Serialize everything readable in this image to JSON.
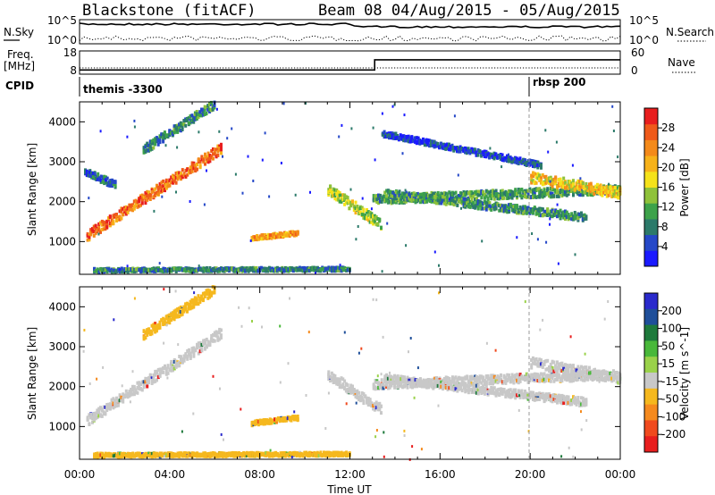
{
  "header": {
    "radar": "Blackstone (fitACF)",
    "beam_date": "Beam 08 04/Aug/2015 - 05/Aug/2015"
  },
  "sky_panel": {
    "left_label": "N.Sky",
    "right_label": "N.Search",
    "left_ticks": [
      "10^5",
      "10^0"
    ],
    "right_ticks": [
      "10^5",
      "10^0"
    ]
  },
  "freq_panel": {
    "left_label_1": "Freq.",
    "left_label_2": "[MHz]",
    "right_label": "Nave",
    "left_ticks": [
      "18",
      "8"
    ],
    "right_ticks": [
      "60",
      "0"
    ],
    "freq_steps": [
      {
        "t": 0,
        "v": 0.18
      },
      {
        "t": 13.1,
        "v": 0.18
      },
      {
        "t": 13.1,
        "v": 0.62
      },
      {
        "t": 24,
        "v": 0.62
      }
    ]
  },
  "cpid_panel": {
    "label": "CPID",
    "programs": [
      {
        "name": "themis -3300",
        "start_hour": 0
      },
      {
        "name": "rbsp 200",
        "start_hour": 20.0
      }
    ]
  },
  "chart_data": [
    {
      "type": "heatmap",
      "title": "",
      "xlabel": "Time UT",
      "ylabel": "Slant Range [km]",
      "xticks": [
        "00:00",
        "04:00",
        "08:00",
        "12:00",
        "16:00",
        "20:00",
        "00:00"
      ],
      "yticks": [
        "1000",
        "2000",
        "3000",
        "4000"
      ],
      "x_range_hours": [
        0,
        24
      ],
      "y_range_km": [
        180,
        4500
      ],
      "colorbar": {
        "label": "Power [dB]",
        "ticks": [
          "4",
          "8",
          "12",
          "16",
          "20",
          "24",
          "28"
        ],
        "range": [
          0,
          30
        ],
        "colors": [
          "#1a1aff",
          "#2548c8",
          "#2c7a6a",
          "#3da24a",
          "#8fc23a",
          "#f5e21a",
          "#f7b21a",
          "#f48a1a",
          "#ef5a1a",
          "#e81e1e"
        ]
      },
      "bands": [
        {
          "t0": 0.3,
          "t1": 6.3,
          "r0": 1150,
          "r1": 3350,
          "w": 260,
          "v": 24
        },
        {
          "t0": 2.8,
          "t1": 6.0,
          "r0": 3300,
          "r1": 4450,
          "w": 220,
          "v": 8
        },
        {
          "t0": 0.2,
          "t1": 1.6,
          "r0": 2750,
          "r1": 2400,
          "w": 180,
          "v": 6
        },
        {
          "t0": 7.6,
          "t1": 9.7,
          "r0": 1080,
          "r1": 1220,
          "w": 110,
          "v": 20
        },
        {
          "t0": 0.6,
          "t1": 12.0,
          "r0": 280,
          "r1": 310,
          "w": 90,
          "v": 8
        },
        {
          "t0": 11.0,
          "t1": 13.4,
          "r0": 2300,
          "r1": 1400,
          "w": 260,
          "v": 14
        },
        {
          "t0": 13.0,
          "t1": 24.0,
          "r0": 2050,
          "r1": 2300,
          "w": 220,
          "v": 10
        },
        {
          "t0": 13.5,
          "t1": 22.5,
          "r0": 2200,
          "r1": 1600,
          "w": 200,
          "v": 9
        },
        {
          "t0": 20.0,
          "t1": 24.0,
          "r0": 2600,
          "r1": 2200,
          "w": 260,
          "v": 18
        },
        {
          "t0": 13.4,
          "t1": 20.5,
          "r0": 3700,
          "r1": 2900,
          "w": 140,
          "v": 4
        }
      ]
    },
    {
      "type": "heatmap",
      "title": "",
      "xlabel": "Time UT",
      "ylabel": "Slant Range [km]",
      "xticks": [
        "00:00",
        "04:00",
        "08:00",
        "12:00",
        "16:00",
        "20:00",
        "00:00"
      ],
      "yticks": [
        "1000",
        "2000",
        "3000",
        "4000"
      ],
      "x_range_hours": [
        0,
        24
      ],
      "y_range_km": [
        180,
        4500
      ],
      "colorbar": {
        "label": "Velocity [m s^-1]",
        "ticks": [
          "200",
          "100",
          "50",
          "15",
          "-15",
          "-50",
          "-100",
          "-200"
        ],
        "colors": [
          "#2a2acc",
          "#1f4f9a",
          "#1e7a3c",
          "#49b83a",
          "#9ad24a",
          "#c8c8c8",
          "#f5b81e",
          "#f58a1e",
          "#f04a1e",
          "#e81e1e"
        ]
      },
      "bands": [
        {
          "t0": 0.3,
          "t1": 6.3,
          "r0": 1150,
          "r1": 3350,
          "w": 260,
          "c": "#c8c8c8"
        },
        {
          "t0": 2.8,
          "t1": 6.0,
          "r0": 3300,
          "r1": 4450,
          "w": 220,
          "c": "#f5b81e"
        },
        {
          "t0": 7.6,
          "t1": 9.7,
          "r0": 1080,
          "r1": 1220,
          "w": 110,
          "c": "#f5b81e"
        },
        {
          "t0": 0.6,
          "t1": 12.0,
          "r0": 280,
          "r1": 310,
          "w": 90,
          "c": "#f5b81e"
        },
        {
          "t0": 11.0,
          "t1": 13.4,
          "r0": 2300,
          "r1": 1400,
          "w": 260,
          "c": "#c8c8c8"
        },
        {
          "t0": 13.0,
          "t1": 24.0,
          "r0": 2050,
          "r1": 2300,
          "w": 220,
          "c": "#c8c8c8"
        },
        {
          "t0": 13.5,
          "t1": 22.5,
          "r0": 2200,
          "r1": 1600,
          "w": 200,
          "c": "#c8c8c8"
        },
        {
          "t0": 20.0,
          "t1": 24.0,
          "r0": 2600,
          "r1": 2200,
          "w": 260,
          "c": "#c8c8c8"
        }
      ]
    }
  ]
}
